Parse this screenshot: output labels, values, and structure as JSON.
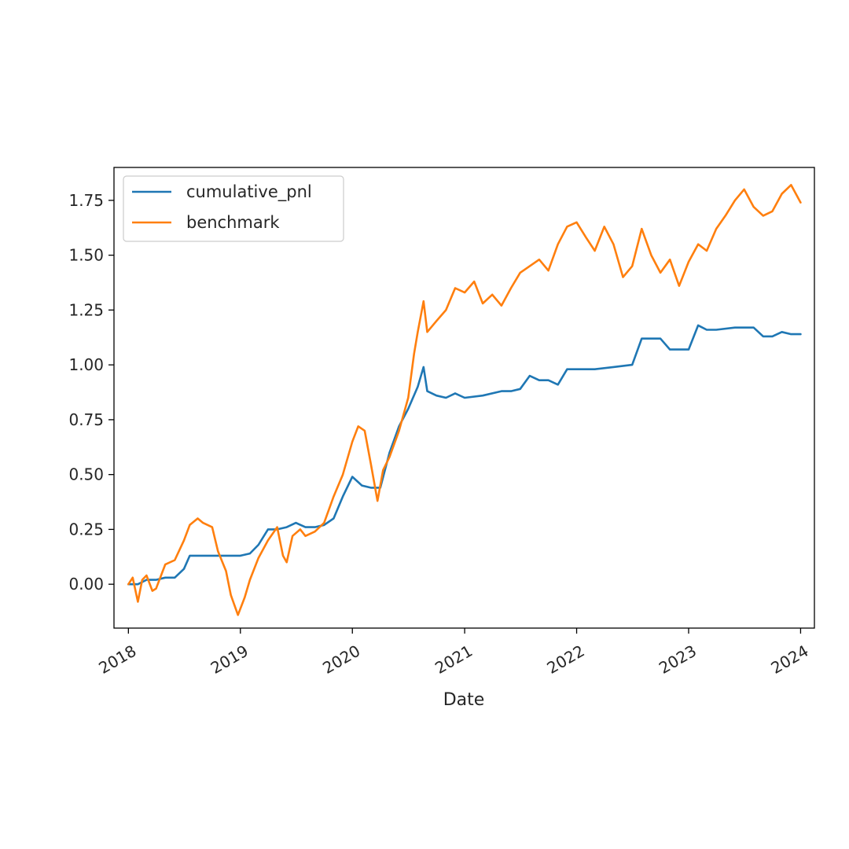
{
  "chart_data": {
    "type": "line",
    "xlabel": "Date",
    "ylabel": "",
    "xlim": [
      "2017-11-15",
      "2024-02-15"
    ],
    "ylim": [
      -0.2,
      1.9
    ],
    "xticks": [
      "2018-01-01",
      "2019-01-01",
      "2020-01-01",
      "2021-01-01",
      "2022-01-01",
      "2023-01-01",
      "2024-01-01"
    ],
    "xtick_labels": [
      "2018",
      "2019",
      "2020",
      "2021",
      "2022",
      "2023",
      "2024"
    ],
    "yticks": [
      0.0,
      0.25,
      0.5,
      0.75,
      1.0,
      1.25,
      1.5,
      1.75
    ],
    "ytick_labels": [
      "0.00",
      "0.25",
      "0.50",
      "0.75",
      "1.00",
      "1.25",
      "1.50",
      "1.75"
    ],
    "legend": {
      "placement": "upper-left",
      "entries": [
        "cumulative_pnl",
        "benchmark"
      ]
    },
    "grid": false,
    "series": [
      {
        "name": "cumulative_pnl",
        "color": "#1f77b4",
        "points": [
          [
            "2018-01-01",
            0.0
          ],
          [
            "2018-02-01",
            0.0
          ],
          [
            "2018-03-01",
            0.02
          ],
          [
            "2018-04-01",
            0.02
          ],
          [
            "2018-05-01",
            0.03
          ],
          [
            "2018-06-01",
            0.03
          ],
          [
            "2018-07-01",
            0.07
          ],
          [
            "2018-07-20",
            0.13
          ],
          [
            "2018-09-01",
            0.13
          ],
          [
            "2018-11-01",
            0.13
          ],
          [
            "2019-01-01",
            0.13
          ],
          [
            "2019-02-01",
            0.14
          ],
          [
            "2019-03-01",
            0.18
          ],
          [
            "2019-04-01",
            0.25
          ],
          [
            "2019-05-01",
            0.25
          ],
          [
            "2019-06-01",
            0.26
          ],
          [
            "2019-07-01",
            0.28
          ],
          [
            "2019-08-01",
            0.26
          ],
          [
            "2019-09-01",
            0.26
          ],
          [
            "2019-10-01",
            0.27
          ],
          [
            "2019-11-01",
            0.3
          ],
          [
            "2019-12-01",
            0.4
          ],
          [
            "2020-01-01",
            0.49
          ],
          [
            "2020-02-01",
            0.45
          ],
          [
            "2020-03-01",
            0.44
          ],
          [
            "2020-04-01",
            0.44
          ],
          [
            "2020-05-01",
            0.6
          ],
          [
            "2020-06-01",
            0.72
          ],
          [
            "2020-07-01",
            0.8
          ],
          [
            "2020-08-01",
            0.9
          ],
          [
            "2020-08-20",
            0.99
          ],
          [
            "2020-09-01",
            0.88
          ],
          [
            "2020-10-01",
            0.86
          ],
          [
            "2020-11-01",
            0.85
          ],
          [
            "2020-12-01",
            0.87
          ],
          [
            "2021-01-01",
            0.85
          ],
          [
            "2021-03-01",
            0.86
          ],
          [
            "2021-05-01",
            0.88
          ],
          [
            "2021-06-01",
            0.88
          ],
          [
            "2021-07-01",
            0.89
          ],
          [
            "2021-08-01",
            0.95
          ],
          [
            "2021-09-01",
            0.93
          ],
          [
            "2021-10-01",
            0.93
          ],
          [
            "2021-11-01",
            0.91
          ],
          [
            "2021-12-01",
            0.98
          ],
          [
            "2022-01-01",
            0.98
          ],
          [
            "2022-03-01",
            0.98
          ],
          [
            "2022-05-01",
            0.99
          ],
          [
            "2022-07-01",
            1.0
          ],
          [
            "2022-08-01",
            1.12
          ],
          [
            "2022-09-01",
            1.12
          ],
          [
            "2022-10-01",
            1.12
          ],
          [
            "2022-11-01",
            1.07
          ],
          [
            "2022-12-01",
            1.07
          ],
          [
            "2023-01-01",
            1.07
          ],
          [
            "2023-02-01",
            1.18
          ],
          [
            "2023-03-01",
            1.16
          ],
          [
            "2023-04-01",
            1.16
          ],
          [
            "2023-06-01",
            1.17
          ],
          [
            "2023-07-01",
            1.17
          ],
          [
            "2023-08-01",
            1.17
          ],
          [
            "2023-09-01",
            1.13
          ],
          [
            "2023-10-01",
            1.13
          ],
          [
            "2023-11-01",
            1.15
          ],
          [
            "2023-12-01",
            1.14
          ],
          [
            "2024-01-01",
            1.14
          ]
        ]
      },
      {
        "name": "benchmark",
        "color": "#ff7f0e",
        "points": [
          [
            "2018-01-01",
            0.0
          ],
          [
            "2018-01-15",
            0.03
          ],
          [
            "2018-02-01",
            -0.08
          ],
          [
            "2018-02-15",
            0.02
          ],
          [
            "2018-03-01",
            0.04
          ],
          [
            "2018-03-20",
            -0.03
          ],
          [
            "2018-04-01",
            -0.02
          ],
          [
            "2018-05-01",
            0.09
          ],
          [
            "2018-06-01",
            0.11
          ],
          [
            "2018-07-01",
            0.2
          ],
          [
            "2018-07-20",
            0.27
          ],
          [
            "2018-08-15",
            0.3
          ],
          [
            "2018-09-01",
            0.28
          ],
          [
            "2018-10-01",
            0.26
          ],
          [
            "2018-10-20",
            0.15
          ],
          [
            "2018-11-15",
            0.06
          ],
          [
            "2018-12-01",
            -0.05
          ],
          [
            "2018-12-24",
            -0.14
          ],
          [
            "2019-01-15",
            -0.06
          ],
          [
            "2019-02-01",
            0.02
          ],
          [
            "2019-03-01",
            0.12
          ],
          [
            "2019-04-01",
            0.2
          ],
          [
            "2019-05-01",
            0.26
          ],
          [
            "2019-05-20",
            0.13
          ],
          [
            "2019-06-01",
            0.1
          ],
          [
            "2019-06-20",
            0.22
          ],
          [
            "2019-07-15",
            0.25
          ],
          [
            "2019-08-01",
            0.22
          ],
          [
            "2019-09-01",
            0.24
          ],
          [
            "2019-10-01",
            0.28
          ],
          [
            "2019-11-01",
            0.4
          ],
          [
            "2019-12-01",
            0.5
          ],
          [
            "2020-01-01",
            0.65
          ],
          [
            "2020-01-20",
            0.72
          ],
          [
            "2020-02-10",
            0.7
          ],
          [
            "2020-03-01",
            0.55
          ],
          [
            "2020-03-23",
            0.38
          ],
          [
            "2020-04-10",
            0.52
          ],
          [
            "2020-05-01",
            0.58
          ],
          [
            "2020-06-01",
            0.7
          ],
          [
            "2020-07-01",
            0.85
          ],
          [
            "2020-07-20",
            1.05
          ],
          [
            "2020-08-01",
            1.15
          ],
          [
            "2020-08-20",
            1.29
          ],
          [
            "2020-09-01",
            1.15
          ],
          [
            "2020-10-01",
            1.2
          ],
          [
            "2020-11-01",
            1.25
          ],
          [
            "2020-12-01",
            1.35
          ],
          [
            "2021-01-01",
            1.33
          ],
          [
            "2021-02-01",
            1.38
          ],
          [
            "2021-03-01",
            1.28
          ],
          [
            "2021-04-01",
            1.32
          ],
          [
            "2021-05-01",
            1.27
          ],
          [
            "2021-06-01",
            1.35
          ],
          [
            "2021-07-01",
            1.42
          ],
          [
            "2021-08-01",
            1.45
          ],
          [
            "2021-09-01",
            1.48
          ],
          [
            "2021-10-01",
            1.43
          ],
          [
            "2021-11-01",
            1.55
          ],
          [
            "2021-12-01",
            1.63
          ],
          [
            "2022-01-01",
            1.65
          ],
          [
            "2022-02-01",
            1.58
          ],
          [
            "2022-03-01",
            1.52
          ],
          [
            "2022-04-01",
            1.63
          ],
          [
            "2022-05-01",
            1.55
          ],
          [
            "2022-06-01",
            1.4
          ],
          [
            "2022-07-01",
            1.45
          ],
          [
            "2022-08-01",
            1.62
          ],
          [
            "2022-09-01",
            1.5
          ],
          [
            "2022-10-01",
            1.42
          ],
          [
            "2022-11-01",
            1.48
          ],
          [
            "2022-12-01",
            1.36
          ],
          [
            "2023-01-01",
            1.47
          ],
          [
            "2023-02-01",
            1.55
          ],
          [
            "2023-03-01",
            1.52
          ],
          [
            "2023-04-01",
            1.62
          ],
          [
            "2023-05-01",
            1.68
          ],
          [
            "2023-06-01",
            1.75
          ],
          [
            "2023-07-01",
            1.8
          ],
          [
            "2023-08-01",
            1.72
          ],
          [
            "2023-09-01",
            1.68
          ],
          [
            "2023-10-01",
            1.7
          ],
          [
            "2023-11-01",
            1.78
          ],
          [
            "2023-12-01",
            1.82
          ],
          [
            "2024-01-01",
            1.74
          ]
        ]
      }
    ]
  }
}
